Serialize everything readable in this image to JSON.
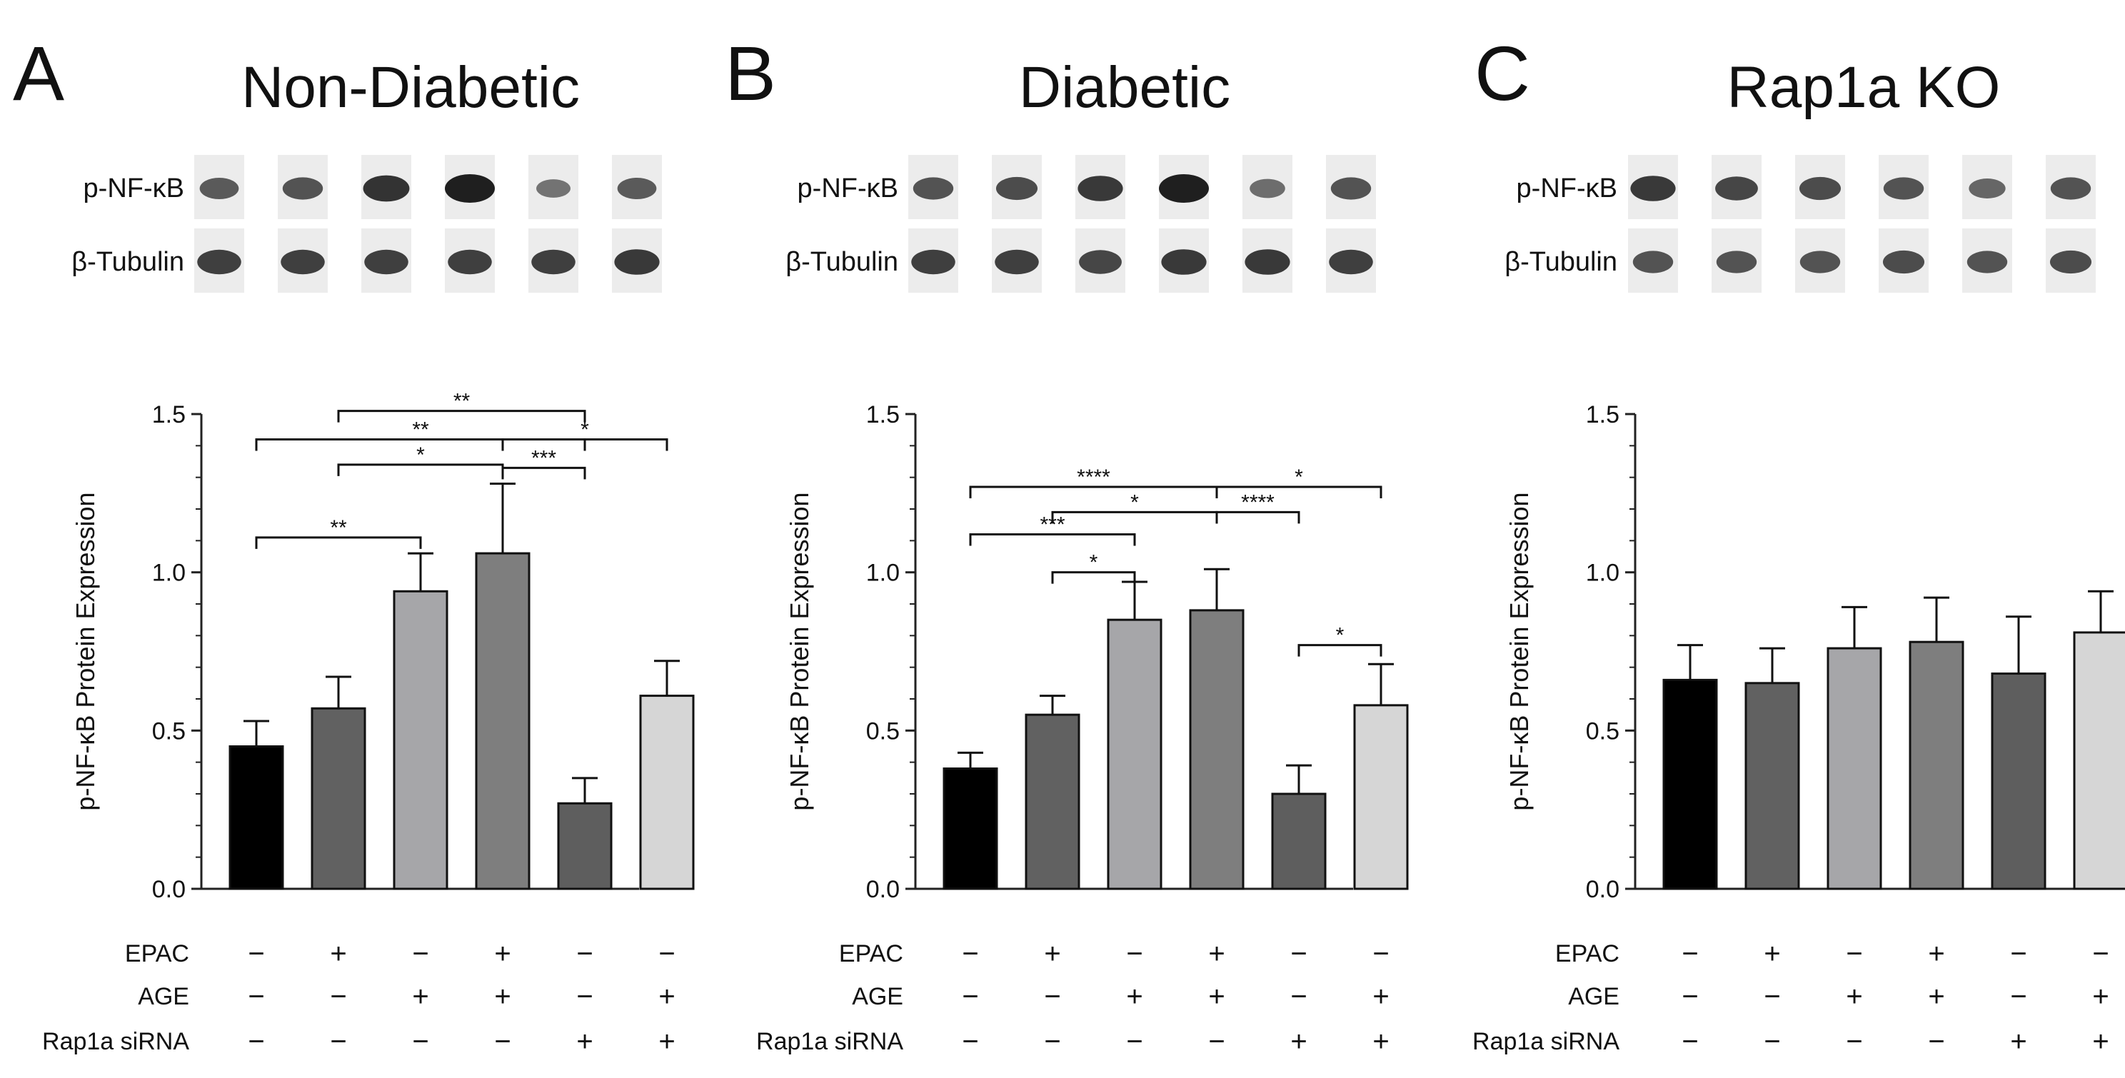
{
  "figure": {
    "row_labels": {
      "p_nfkb": "p-NF-κB",
      "tubulin": "β-Tubulin",
      "epac": "EPAC",
      "age": "AGE",
      "rap1a": "Rap1a  siRNA"
    },
    "colors": {
      "bar_fills": [
        "#000000",
        "#616161",
        "#a6a6a9",
        "#7e7e7e",
        "#5e5e5e",
        "#d6d6d6"
      ],
      "blot_bg": "#ececec",
      "band": "#141414"
    },
    "conditions": {
      "epac": [
        "−",
        "+",
        "−",
        "+",
        "−",
        "−"
      ],
      "age": [
        "−",
        "−",
        "+",
        "+",
        "−",
        "+"
      ],
      "rap1a": [
        "−",
        "−",
        "−",
        "−",
        "+",
        "+"
      ]
    }
  },
  "chart_data": [
    {
      "panel_letter": "A",
      "type": "bar",
      "title": "Non-Diabetic",
      "ylabel": "p-NF-κB Protein Expression",
      "xlabel": "",
      "ylim": [
        0,
        1.5
      ],
      "yticks": [
        "0.0",
        "0.5",
        "1.0",
        "1.5"
      ],
      "categories": [
        "EPAC− AGE− Rap1a siRNA−",
        "EPAC+ AGE− Rap1a siRNA−",
        "EPAC− AGE+ Rap1a siRNA−",
        "EPAC+ AGE+ Rap1a siRNA−",
        "EPAC− AGE− Rap1a siRNA+",
        "EPAC− AGE+ Rap1a siRNA+"
      ],
      "values": [
        0.45,
        0.57,
        0.94,
        1.06,
        0.27,
        0.61
      ],
      "error": [
        0.08,
        0.1,
        0.12,
        0.22,
        0.08,
        0.11
      ],
      "blots": {
        "p_nfkb": [
          0.55,
          0.6,
          0.85,
          1.0,
          0.35,
          0.55
        ],
        "tubulin": [
          0.75,
          0.75,
          0.75,
          0.75,
          0.75,
          0.8
        ]
      },
      "significance": [
        {
          "from": 2,
          "to": 5,
          "y": 1.51,
          "label": "**"
        },
        {
          "from": 1,
          "to": 5,
          "y": 1.42,
          "label": "**"
        },
        {
          "from": 4,
          "to": 6,
          "y": 1.42,
          "label": "*"
        },
        {
          "from": 4,
          "to": 5,
          "y": 1.33,
          "label": "***"
        },
        {
          "from": 2,
          "to": 4,
          "y": 1.34,
          "label": "*"
        },
        {
          "from": 1,
          "to": 3,
          "y": 1.11,
          "label": "**"
        }
      ]
    },
    {
      "panel_letter": "B",
      "type": "bar",
      "title": "Diabetic",
      "ylabel": "p-NF-κB Protein Expression",
      "xlabel": "",
      "ylim": [
        0,
        1.5
      ],
      "yticks": [
        "0.0",
        "0.5",
        "1.0",
        "1.5"
      ],
      "categories": [
        "EPAC− AGE− Rap1a siRNA−",
        "EPAC+ AGE− Rap1a siRNA−",
        "EPAC− AGE+ Rap1a siRNA−",
        "EPAC+ AGE+ Rap1a siRNA−",
        "EPAC− AGE− Rap1a siRNA+",
        "EPAC− AGE+ Rap1a siRNA+"
      ],
      "values": [
        0.38,
        0.55,
        0.85,
        0.88,
        0.3,
        0.58
      ],
      "error": [
        0.05,
        0.06,
        0.12,
        0.13,
        0.09,
        0.13
      ],
      "blots": {
        "p_nfkb": [
          0.6,
          0.65,
          0.8,
          1.0,
          0.4,
          0.6
        ],
        "tubulin": [
          0.75,
          0.75,
          0.7,
          0.8,
          0.8,
          0.75
        ]
      },
      "significance": [
        {
          "from": 1,
          "to": 4,
          "y": 1.27,
          "label": "****"
        },
        {
          "from": 4,
          "to": 6,
          "y": 1.27,
          "label": "*"
        },
        {
          "from": 2,
          "to": 4,
          "y": 1.19,
          "label": "*"
        },
        {
          "from": 4,
          "to": 5,
          "y": 1.19,
          "label": "****"
        },
        {
          "from": 1,
          "to": 3,
          "y": 1.12,
          "label": "***"
        },
        {
          "from": 2,
          "to": 3,
          "y": 1.0,
          "label": "*"
        },
        {
          "from": 5,
          "to": 6,
          "y": 0.77,
          "label": "*"
        }
      ]
    },
    {
      "panel_letter": "C",
      "type": "bar",
      "title": "Rap1a KO",
      "ylabel": "p-NF-κB Protein Expression",
      "xlabel": "",
      "ylim": [
        0,
        1.5
      ],
      "yticks": [
        "0.0",
        "0.5",
        "1.0",
        "1.5"
      ],
      "categories": [
        "EPAC− AGE− Rap1a siRNA−",
        "EPAC+ AGE− Rap1a siRNA−",
        "EPAC− AGE+ Rap1a siRNA−",
        "EPAC+ AGE+ Rap1a siRNA−",
        "EPAC− AGE− Rap1a siRNA+",
        "EPAC− AGE+ Rap1a siRNA+"
      ],
      "values": [
        0.66,
        0.65,
        0.76,
        0.78,
        0.68,
        0.81
      ],
      "error": [
        0.11,
        0.11,
        0.13,
        0.14,
        0.18,
        0.13
      ],
      "blots": {
        "p_nfkb": [
          0.8,
          0.7,
          0.65,
          0.6,
          0.45,
          0.6
        ],
        "tubulin": [
          0.6,
          0.6,
          0.6,
          0.65,
          0.6,
          0.65
        ]
      },
      "significance": []
    }
  ]
}
